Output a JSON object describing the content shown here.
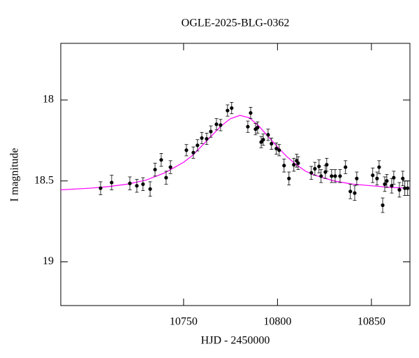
{
  "chart_data": {
    "type": "scatter",
    "title": "OGLE-2025-BLG-0362",
    "x_label": "HJD - 2450000",
    "y_label": "I magnitude",
    "xlim": [
      10684.6,
      10870.5
    ],
    "xticks": [
      10750,
      10800,
      10850
    ],
    "ylim": [
      19.27,
      17.65
    ],
    "yticks": [
      18,
      {
        "value": 18.5,
        "label": "18.5"
      },
      19
    ],
    "points": {
      "color": "#000000",
      "x": [
        10705.8,
        10711.7,
        10721.4,
        10725.1,
        10728.4,
        10732.2,
        10734.8,
        10738.1,
        10740.7,
        10743,
        10751.5,
        10755.2,
        10757.4,
        10759.7,
        10762.3,
        10764.5,
        10767.5,
        10769.7,
        10773.4,
        10775.6,
        10784.2,
        10785.7,
        10788.3,
        10789.4,
        10791.3,
        10792.4,
        10795,
        10796.8,
        10799.4,
        10800.9,
        10803.5,
        10806.1,
        10808.7,
        10810.2,
        10811,
        10818,
        10819.9,
        10822.1,
        10823.2,
        10825.5,
        10826.2,
        10828.8,
        10830.7,
        10833.3,
        10836.2,
        10838.8,
        10841.1,
        10842.2,
        10850.7,
        10853,
        10854.1,
        10856,
        10857.1,
        10858.2,
        10860.8,
        10861.9,
        10864.9,
        10866.7,
        10867.8,
        10869.3
      ],
      "values": [
        18.545,
        18.51,
        18.515,
        18.53,
        18.52,
        18.55,
        18.43,
        18.37,
        18.48,
        18.415,
        18.31,
        18.325,
        18.28,
        18.235,
        18.24,
        18.195,
        18.15,
        18.155,
        18.065,
        18.05,
        18.165,
        18.08,
        18.18,
        18.17,
        18.26,
        18.245,
        18.215,
        18.27,
        18.3,
        18.31,
        18.405,
        18.485,
        18.4,
        18.375,
        18.39,
        18.45,
        18.425,
        18.41,
        18.47,
        18.445,
        18.4,
        18.47,
        18.47,
        18.47,
        18.415,
        18.565,
        18.575,
        18.485,
        18.465,
        18.485,
        18.415,
        18.65,
        18.52,
        18.5,
        18.53,
        18.48,
        18.555,
        18.485,
        18.545,
        18.545
      ],
      "errors": [
        0.04,
        0.045,
        0.04,
        0.04,
        0.04,
        0.045,
        0.04,
        0.04,
        0.04,
        0.04,
        0.035,
        0.035,
        0.035,
        0.035,
        0.035,
        0.035,
        0.035,
        0.035,
        0.035,
        0.035,
        0.035,
        0.035,
        0.035,
        0.035,
        0.035,
        0.035,
        0.035,
        0.035,
        0.035,
        0.035,
        0.04,
        0.04,
        0.04,
        0.04,
        0.04,
        0.04,
        0.04,
        0.04,
        0.04,
        0.04,
        0.04,
        0.04,
        0.04,
        0.04,
        0.04,
        0.045,
        0.045,
        0.04,
        0.045,
        0.04,
        0.04,
        0.045,
        0.045,
        0.04,
        0.045,
        0.04,
        0.045,
        0.045,
        0.045,
        0.045
      ]
    },
    "model": {
      "color": "#ff00ff",
      "x": [
        10684.6,
        10700,
        10710,
        10720,
        10730,
        10740,
        10750,
        10755,
        10760,
        10765,
        10770,
        10775,
        10780,
        10785,
        10790,
        10795,
        10800,
        10805,
        10810,
        10815,
        10820,
        10830,
        10840,
        10850,
        10860,
        10870.5
      ],
      "values": [
        18.555,
        18.545,
        18.535,
        18.52,
        18.495,
        18.45,
        18.385,
        18.34,
        18.28,
        18.22,
        18.16,
        18.115,
        18.095,
        18.11,
        18.16,
        18.225,
        18.29,
        18.35,
        18.4,
        18.44,
        18.465,
        18.5,
        18.52,
        18.53,
        18.54,
        18.545
      ]
    }
  }
}
